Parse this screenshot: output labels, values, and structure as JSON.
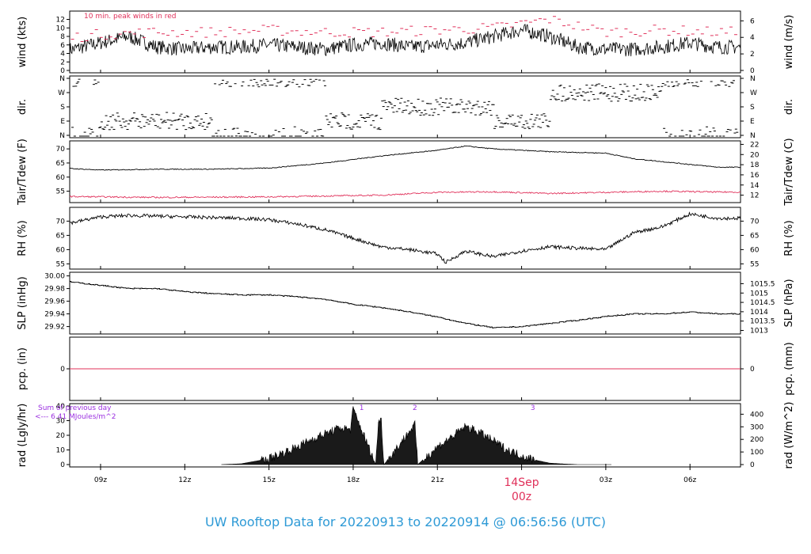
{
  "title": "UW Rooftop Data for 20220913  to  20220914 @ 06:56:56  (UTC)",
  "colors": {
    "title": "#2e9ad6",
    "peak": "#e0305a",
    "annotation": "#9b30e0",
    "series": "#000000",
    "dewpoint": "#e0305a",
    "precip": "#e0305a",
    "date": "#e0305a"
  },
  "date_marker": {
    "day": "14Sep",
    "hour": "00z"
  },
  "x_ticks": [
    "09z",
    "12z",
    "15z",
    "18z",
    "21z",
    "00z",
    "03z",
    "06z"
  ],
  "panels": [
    {
      "id": "wind",
      "left_label": "wind (kts)",
      "right_label": "wind (m/s)",
      "left_ticks": [
        "0",
        "2",
        "4",
        "6",
        "8",
        "10",
        "12"
      ],
      "right_ticks": [
        "0",
        "2",
        "4",
        "6"
      ],
      "note": "10 min. peak winds in red"
    },
    {
      "id": "dir",
      "left_label": "dir.",
      "right_label": "dir.",
      "left_ticks": [
        "N",
        "E",
        "S",
        "W",
        "N"
      ],
      "right_ticks": [
        "N",
        "E",
        "S",
        "W",
        "N"
      ]
    },
    {
      "id": "temp",
      "left_label": "Tair/Tdew (F)",
      "right_label": "Tair/Tdew (C)",
      "left_ticks": [
        "55",
        "60",
        "65",
        "70"
      ],
      "right_ticks": [
        "12",
        "14",
        "16",
        "18",
        "20",
        "22"
      ]
    },
    {
      "id": "rh",
      "left_label": "RH (%)",
      "right_label": "RH (%)",
      "left_ticks": [
        "55",
        "60",
        "65",
        "70"
      ],
      "right_ticks": [
        "55",
        "60",
        "65",
        "70"
      ]
    },
    {
      "id": "slp",
      "left_label": "SLP (inHg)",
      "right_label": "SLP (hPa)",
      "left_ticks": [
        "29.92",
        "29.94",
        "29.96",
        "29.98",
        "30.00"
      ],
      "right_ticks": [
        "1013",
        "1013.5",
        "1014",
        "1014.5",
        "1015",
        "1015.5"
      ]
    },
    {
      "id": "pcp",
      "left_label": "pcp. (in)",
      "right_label": "pcp. (mm)",
      "left_ticks": [
        "0"
      ],
      "right_ticks": [
        "0"
      ]
    },
    {
      "id": "rad",
      "left_label": "rad (Lgly/hr)",
      "right_label": "rad (W/m^2)",
      "left_ticks": [
        "0",
        "10",
        "20",
        "30",
        "40"
      ],
      "right_ticks": [
        "0",
        "100",
        "200",
        "300",
        "400"
      ],
      "note_line1": "Sum of previous day",
      "note_line2": "<--- 6.41 MJoules/m^2",
      "markers": [
        "1",
        "2",
        "3"
      ]
    }
  ],
  "chart_data": {
    "type": "line",
    "x_units": "hours UTC since 2022-09-13 07:00",
    "x_range": [
      0,
      24
    ],
    "series": [
      {
        "name": "wind (kts)",
        "units": "kts",
        "x": [
          0,
          1,
          2,
          3,
          4,
          5,
          6,
          7,
          8,
          9,
          10,
          11,
          12,
          13,
          14,
          15,
          16,
          17,
          18,
          19,
          20,
          21,
          22,
          23,
          24
        ],
        "values": [
          4.5,
          5,
          6.5,
          8,
          5.5,
          5,
          5.5,
          5.5,
          6,
          5.5,
          5,
          6,
          6.5,
          5.5,
          6,
          6.5,
          8,
          9.5,
          8,
          5.5,
          5,
          5,
          5.5,
          6.5,
          5.5
        ]
      },
      {
        "name": "10 min. peak winds",
        "units": "kts",
        "x": [
          0,
          2,
          4,
          6,
          8,
          10,
          12,
          14,
          16,
          18,
          20,
          22,
          24
        ],
        "values": [
          7,
          8.5,
          9,
          9,
          9.5,
          9,
          9,
          9.5,
          10,
          12,
          9,
          9.5,
          9
        ]
      },
      {
        "name": "dir.",
        "units": "compass",
        "x": [
          0,
          2,
          4,
          6,
          8,
          10,
          12,
          14,
          16,
          18,
          20,
          22,
          24
        ],
        "values": [
          "N",
          "E",
          "E",
          "N",
          "N",
          "E",
          "S",
          "S",
          "E",
          "W",
          "W",
          "N",
          "N"
        ]
      },
      {
        "name": "Tair (F)",
        "units": "F",
        "x": [
          0,
          2,
          4,
          6,
          8,
          10,
          12,
          14,
          15,
          16,
          18,
          20,
          21,
          22,
          24
        ],
        "values": [
          63.5,
          62.5,
          62.8,
          62.8,
          63.2,
          65,
          67.5,
          69.5,
          71,
          70,
          69,
          68.5,
          66.5,
          65.5,
          63.5
        ]
      },
      {
        "name": "Tdew (F)",
        "units": "F",
        "x": [
          0,
          4,
          8,
          12,
          14,
          16,
          18,
          20,
          22,
          24
        ],
        "values": [
          53.2,
          52.8,
          53.0,
          53.6,
          54.6,
          54.8,
          54.2,
          54.6,
          55.0,
          54.7
        ]
      },
      {
        "name": "RH (%)",
        "units": "%",
        "x": [
          0,
          1,
          2,
          3,
          5,
          7,
          8,
          9,
          10,
          11,
          12,
          13,
          14,
          14.3,
          15,
          16,
          17,
          18,
          19,
          20,
          21,
          22,
          23,
          24
        ],
        "values": [
          70,
          69.5,
          71.5,
          72,
          71.5,
          71,
          70.5,
          69,
          67,
          64,
          61,
          60,
          58.5,
          55.5,
          59.5,
          57.5,
          59.5,
          61,
          60.5,
          60,
          66,
          68,
          72.5,
          71
        ]
      },
      {
        "name": "SLP (inHg)",
        "units": "inHg",
        "x": [
          0,
          1,
          2,
          3,
          4,
          5,
          6,
          7,
          8,
          9,
          10,
          11,
          12,
          13,
          14,
          15,
          16,
          17,
          18,
          19,
          20,
          21,
          22,
          23,
          24
        ],
        "values": [
          30.0,
          29.99,
          29.985,
          29.98,
          29.98,
          29.975,
          29.972,
          29.97,
          29.97,
          29.967,
          29.963,
          29.955,
          29.95,
          29.943,
          29.935,
          29.925,
          29.918,
          29.92,
          29.925,
          29.93,
          29.936,
          29.94,
          29.94,
          29.943,
          29.94
        ]
      },
      {
        "name": "pcp. (in)",
        "units": "in",
        "x": [
          0,
          24
        ],
        "values": [
          0,
          0
        ]
      },
      {
        "name": "rad (Lgly/hr)",
        "units": "Lgly/hr",
        "x": [
          6.3,
          7,
          8,
          9,
          9.5,
          10,
          10.4,
          10.6,
          10.9,
          11,
          11.8,
          11.9,
          12.0,
          12.1,
          13.1,
          13.2,
          13.3,
          14.0,
          14.6,
          15,
          15.5,
          16,
          16.5,
          17,
          17.5,
          18,
          18.5,
          19,
          19.5,
          20,
          20.2
        ],
        "values": [
          0,
          0.5,
          4,
          12,
          17,
          21,
          24,
          25,
          24,
          38,
          0,
          29,
          30,
          0,
          25,
          27,
          0,
          12,
          20,
          26,
          22,
          16,
          10,
          6,
          3,
          1,
          0.4,
          0,
          0,
          0,
          0
        ]
      }
    ]
  }
}
